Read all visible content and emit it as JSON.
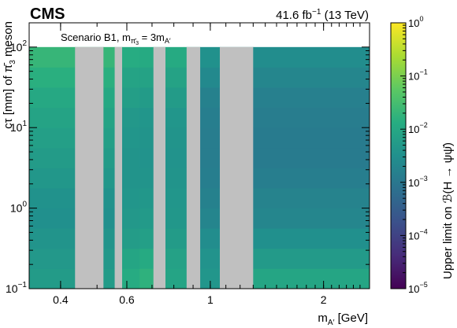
{
  "chart_data": {
    "type": "heatmap",
    "experiment": "CMS",
    "luminosity": "41.6 fb",
    "luminosity_exp": "−1",
    "energy": "(13 TeV)",
    "scenario": {
      "prefix": "Scenario B1, m",
      "sub1": "π̄",
      "sub1_sub": "3",
      "middle": " = 3m",
      "sub2": "A′"
    },
    "xlabel": {
      "main": "m",
      "sub": "A′",
      "unit": " [GeV]"
    },
    "ylabel": {
      "text": "cτ [mm] of π̄",
      "sub": "3",
      "tail": " meson"
    },
    "zlabel": "Upper limit on ℬ(H → ψψ̄)",
    "x_scale": "log",
    "y_scale": "log",
    "z_scale": "log",
    "xlim": [
      0.33,
      2.65
    ],
    "ylim": [
      0.1,
      200
    ],
    "zlim": [
      1e-05,
      1
    ],
    "data_ymax": 100,
    "x_ticks": [
      {
        "value": 0.4,
        "label": "0.4"
      },
      {
        "value": 0.6,
        "label": "0.6"
      },
      {
        "value": 1,
        "label": "1"
      },
      {
        "value": 2,
        "label": "2"
      }
    ],
    "y_ticks": [
      {
        "value": 0.1,
        "base": "10",
        "exp": "−1"
      },
      {
        "value": 1,
        "base": "10",
        "exp": "0"
      },
      {
        "value": 10,
        "base": "10",
        "exp": "1"
      },
      {
        "value": 100,
        "base": "10",
        "exp": "2"
      }
    ],
    "z_ticks": [
      {
        "value": 1e-05,
        "base": "10",
        "exp": "−5"
      },
      {
        "value": 0.0001,
        "base": "10",
        "exp": "−4"
      },
      {
        "value": 0.001,
        "base": "10",
        "exp": "−3"
      },
      {
        "value": 0.01,
        "base": "10",
        "exp": "−2"
      },
      {
        "value": 0.1,
        "base": "10",
        "exp": "−1"
      },
      {
        "value": 1,
        "base": "10",
        "exp": "0"
      }
    ],
    "x_bin_edges": [
      0.33,
      0.437,
      0.52,
      0.557,
      0.583,
      0.649,
      0.706,
      0.76,
      0.85,
      0.865,
      0.94,
      1.06,
      1.3,
      2.65
    ],
    "excluded_columns": [
      1,
      3,
      6,
      9,
      11
    ],
    "y_bin_edges": [
      0.1,
      0.178,
      0.316,
      0.562,
      1,
      1.78,
      3.16,
      5.62,
      10,
      17.8,
      31.6,
      56.2,
      100
    ],
    "cells": [
      [
        0.0055,
        0.0052,
        0.0055,
        0.0057,
        0.012,
        0.0165,
        0.0175,
        0.0085,
        0.0085,
        0.0045,
        0.0042,
        0.0042,
        0.009
      ],
      [
        0.0048,
        0.0045,
        0.0048,
        0.005,
        0.009,
        0.0115,
        0.0125,
        0.0075,
        0.0075,
        0.0038,
        0.0036,
        0.0036,
        0.0052
      ],
      [
        0.0038,
        0.0036,
        0.0038,
        0.004,
        0.0058,
        0.0065,
        0.007,
        0.0055,
        0.0055,
        0.003,
        0.0028,
        0.0028,
        0.0032
      ],
      [
        0.0032,
        0.003,
        0.0032,
        0.0034,
        0.0048,
        0.0052,
        0.0055,
        0.0045,
        0.0045,
        0.0022,
        0.0019,
        0.0018,
        0.002
      ],
      [
        0.0035,
        0.0034,
        0.0035,
        0.0037,
        0.0042,
        0.0045,
        0.0048,
        0.0042,
        0.0042,
        0.0021,
        0.0016,
        0.0015,
        0.0017
      ],
      [
        0.0045,
        0.0043,
        0.0045,
        0.0047,
        0.0038,
        0.0038,
        0.0038,
        0.0038,
        0.0038,
        0.002,
        0.0014,
        0.0013,
        0.0014
      ],
      [
        0.0055,
        0.0052,
        0.0055,
        0.0057,
        0.0038,
        0.0036,
        0.0036,
        0.0036,
        0.0036,
        0.002,
        0.0013,
        0.0012,
        0.0012
      ],
      [
        0.0068,
        0.0064,
        0.0068,
        0.007,
        0.0042,
        0.0038,
        0.0038,
        0.0038,
        0.0038,
        0.002,
        0.0013,
        0.0012,
        0.0012
      ],
      [
        0.0082,
        0.0078,
        0.0082,
        0.0085,
        0.0048,
        0.0042,
        0.0042,
        0.0042,
        0.0042,
        0.0021,
        0.0014,
        0.0013,
        0.0013
      ],
      [
        0.0105,
        0.01,
        0.0105,
        0.011,
        0.0062,
        0.0055,
        0.0055,
        0.0055,
        0.0055,
        0.0024,
        0.0016,
        0.0015,
        0.0015
      ],
      [
        0.0145,
        0.014,
        0.0145,
        0.015,
        0.0082,
        0.0078,
        0.0078,
        0.0078,
        0.0078,
        0.0032,
        0.0023,
        0.002,
        0.002
      ],
      [
        0.0205,
        0.0195,
        0.0205,
        0.021,
        0.0125,
        0.0115,
        0.0115,
        0.0115,
        0.0115,
        0.0048,
        0.0034,
        0.0028,
        0.0028
      ]
    ],
    "excluded_color": "#c0c0c0",
    "colormap": [
      "#440154",
      "#472c7a",
      "#3b518b",
      "#2c718e",
      "#21908d",
      "#27ad81",
      "#5cc863",
      "#aadc32",
      "#fde725"
    ]
  }
}
